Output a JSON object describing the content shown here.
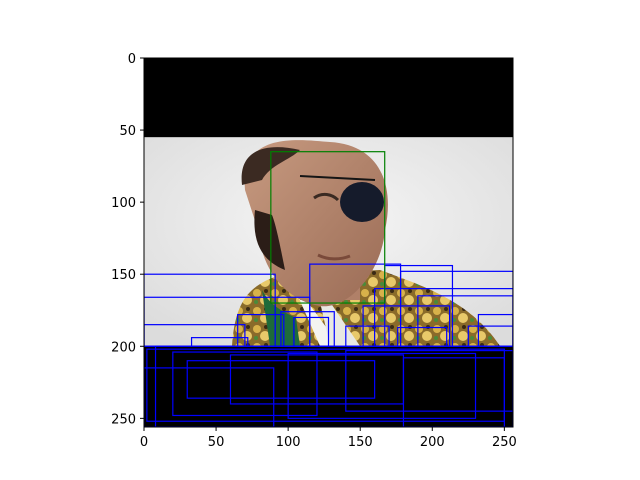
{
  "figure": {
    "x_ticks": [
      "0",
      "50",
      "100",
      "150",
      "200",
      "250"
    ],
    "y_ticks": [
      "0",
      "50",
      "100",
      "150",
      "200",
      "250"
    ],
    "x_range": [
      0,
      256
    ],
    "y_range": [
      0,
      256
    ],
    "y_inverted": true,
    "image_extent": {
      "x": [
        0,
        256
      ],
      "y": [
        256,
        0
      ]
    },
    "image_content": "photo of a man wearing an eye patch in a gold-embroidered jacket; top band black (rows 0-55) and bottom band black (rows 200-256)",
    "colors": {
      "face_box": "#008000",
      "detection_boxes": "#0000ff",
      "pad": "#000000"
    },
    "face_box": {
      "x0": 88,
      "y0": 65,
      "x1": 167,
      "y1": 170
    },
    "boxes": [
      {
        "x0": 0,
        "y0": 150,
        "x1": 91,
        "y1": 200
      },
      {
        "x0": 0,
        "y0": 166,
        "x1": 115,
        "y1": 200
      },
      {
        "x0": 0,
        "y0": 185,
        "x1": 70,
        "y1": 200
      },
      {
        "x0": 115,
        "y0": 143,
        "x1": 178,
        "y1": 200
      },
      {
        "x0": 167,
        "y0": 144,
        "x1": 214,
        "y1": 200
      },
      {
        "x0": 178,
        "y0": 148,
        "x1": 256,
        "y1": 200
      },
      {
        "x0": 160,
        "y0": 160,
        "x1": 256,
        "y1": 200
      },
      {
        "x0": 190,
        "y0": 165,
        "x1": 256,
        "y1": 200
      },
      {
        "x0": 95,
        "y0": 176,
        "x1": 132,
        "y1": 200
      },
      {
        "x0": 104,
        "y0": 180,
        "x1": 128,
        "y1": 200
      },
      {
        "x0": 65,
        "y0": 178,
        "x1": 97,
        "y1": 200
      },
      {
        "x0": 152,
        "y0": 172,
        "x1": 212,
        "y1": 200
      },
      {
        "x0": 232,
        "y0": 178,
        "x1": 256,
        "y1": 200
      },
      {
        "x0": 225,
        "y0": 186,
        "x1": 256,
        "y1": 200
      },
      {
        "x0": 140,
        "y0": 186,
        "x1": 170,
        "y1": 200
      },
      {
        "x0": 33,
        "y0": 194,
        "x1": 72,
        "y1": 200
      },
      {
        "x0": 176,
        "y0": 187,
        "x1": 210,
        "y1": 200
      },
      {
        "x0": 8,
        "y0": 200,
        "x1": 256,
        "y1": 256
      },
      {
        "x0": 2,
        "y0": 202,
        "x1": 250,
        "y1": 252
      },
      {
        "x0": 20,
        "y0": 204,
        "x1": 120,
        "y1": 248
      },
      {
        "x0": 60,
        "y0": 206,
        "x1": 180,
        "y1": 240
      },
      {
        "x0": 100,
        "y0": 205,
        "x1": 230,
        "y1": 250
      },
      {
        "x0": 140,
        "y0": 203,
        "x1": 256,
        "y1": 245
      },
      {
        "x0": 0,
        "y0": 215,
        "x1": 90,
        "y1": 256
      },
      {
        "x0": 30,
        "y0": 210,
        "x1": 160,
        "y1": 236
      },
      {
        "x0": 180,
        "y0": 208,
        "x1": 250,
        "y1": 256
      }
    ]
  }
}
